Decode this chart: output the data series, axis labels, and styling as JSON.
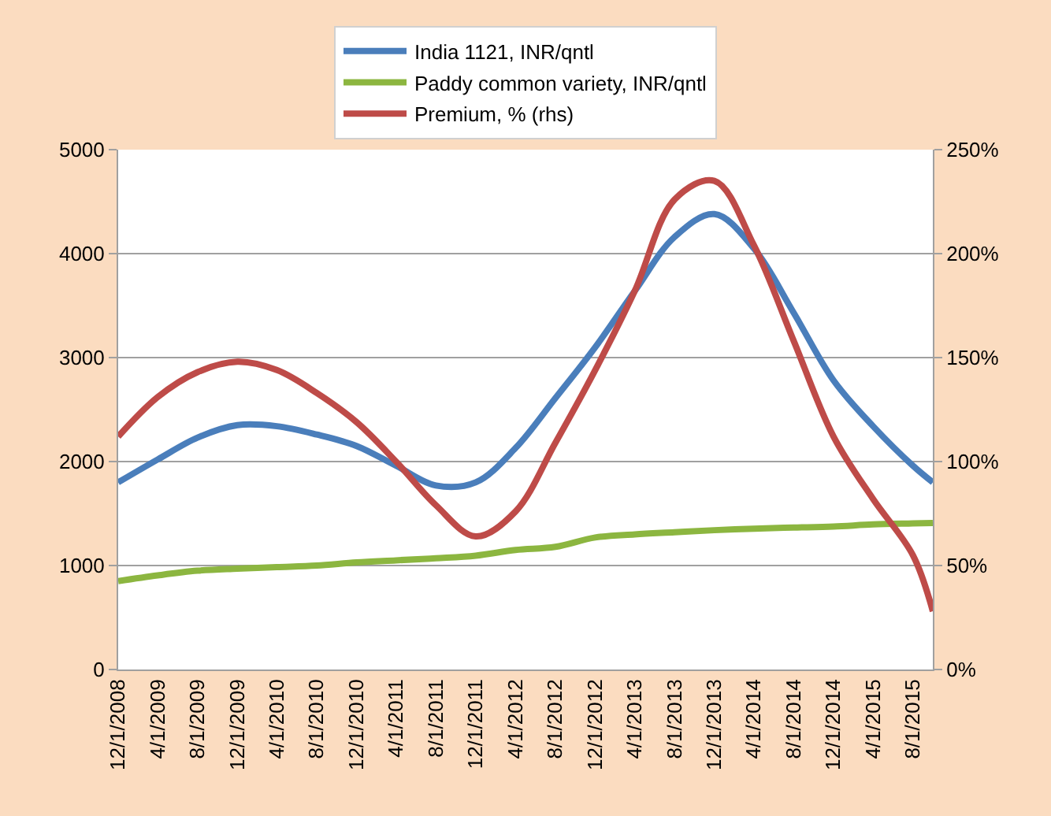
{
  "chart_data": {
    "type": "line",
    "x": [
      "2008-12-01",
      "2009-04-01",
      "2009-08-01",
      "2009-12-01",
      "2010-04-01",
      "2010-08-01",
      "2010-12-01",
      "2011-04-01",
      "2011-08-01",
      "2011-12-01",
      "2012-04-01",
      "2012-08-01",
      "2012-12-01",
      "2013-04-01",
      "2013-08-01",
      "2013-12-01",
      "2014-04-01",
      "2014-08-01",
      "2014-12-01",
      "2015-04-01",
      "2015-08-01",
      "2015-10-01"
    ],
    "series": [
      {
        "name": "India 1121, INR/qntl",
        "color": "#4a7ebb",
        "values": [
          1800,
          2020,
          2230,
          2350,
          2340,
          2260,
          2150,
          1960,
          1770,
          1800,
          2130,
          2610,
          3100,
          3640,
          4160,
          4380,
          4050,
          3430,
          2780,
          2340,
          1960,
          1800
        ]
      },
      {
        "name": "Paddy common variety, INR/qntl",
        "color": "#8cb640",
        "values": [
          850,
          905,
          950,
          970,
          985,
          1000,
          1030,
          1050,
          1070,
          1095,
          1150,
          1180,
          1270,
          1300,
          1320,
          1340,
          1355,
          1365,
          1375,
          1395,
          1405,
          1410
        ]
      },
      {
        "name": "Premium, % (rhs)",
        "color": "#be4b48",
        "axis": "y2",
        "values": [
          112,
          131,
          143,
          148,
          144,
          133,
          119,
          100,
          79,
          64,
          76,
          109,
          144,
          182,
          226,
          235,
          204,
          158,
          112,
          82,
          55,
          28
        ]
      }
    ],
    "xlim": [
      "2008-12-01",
      "2015-10-01"
    ],
    "xticks": [
      {
        "value": "2008-12-01",
        "label": "12/1/2008"
      },
      {
        "value": "2009-04-01",
        "label": "4/1/2009"
      },
      {
        "value": "2009-08-01",
        "label": "8/1/2009"
      },
      {
        "value": "2009-12-01",
        "label": "12/1/2009"
      },
      {
        "value": "2010-04-01",
        "label": "4/1/2010"
      },
      {
        "value": "2010-08-01",
        "label": "8/1/2010"
      },
      {
        "value": "2010-12-01",
        "label": "12/1/2010"
      },
      {
        "value": "2011-04-01",
        "label": "4/1/2011"
      },
      {
        "value": "2011-08-01",
        "label": "8/1/2011"
      },
      {
        "value": "2011-12-01",
        "label": "12/1/2011"
      },
      {
        "value": "2012-04-01",
        "label": "4/1/2012"
      },
      {
        "value": "2012-08-01",
        "label": "8/1/2012"
      },
      {
        "value": "2012-12-01",
        "label": "12/1/2012"
      },
      {
        "value": "2013-04-01",
        "label": "4/1/2013"
      },
      {
        "value": "2013-08-01",
        "label": "8/1/2013"
      },
      {
        "value": "2013-12-01",
        "label": "12/1/2013"
      },
      {
        "value": "2014-04-01",
        "label": "4/1/2014"
      },
      {
        "value": "2014-08-01",
        "label": "8/1/2014"
      },
      {
        "value": "2014-12-01",
        "label": "12/1/2014"
      },
      {
        "value": "2015-04-01",
        "label": "4/1/2015"
      },
      {
        "value": "2015-08-01",
        "label": "8/1/2015"
      }
    ],
    "ylim": [
      0,
      5000
    ],
    "yticks": [
      0,
      1000,
      2000,
      3000,
      4000,
      5000
    ],
    "y2lim": [
      0,
      250
    ],
    "y2ticks": [
      {
        "value": 0,
        "label": "0%"
      },
      {
        "value": 50,
        "label": "50%"
      },
      {
        "value": 100,
        "label": "100%"
      },
      {
        "value": 150,
        "label": "150%"
      },
      {
        "value": 200,
        "label": "200%"
      },
      {
        "value": 250,
        "label": "250%"
      }
    ],
    "grid": "y",
    "legend": "top",
    "marker": "none",
    "line_style": "solid"
  }
}
